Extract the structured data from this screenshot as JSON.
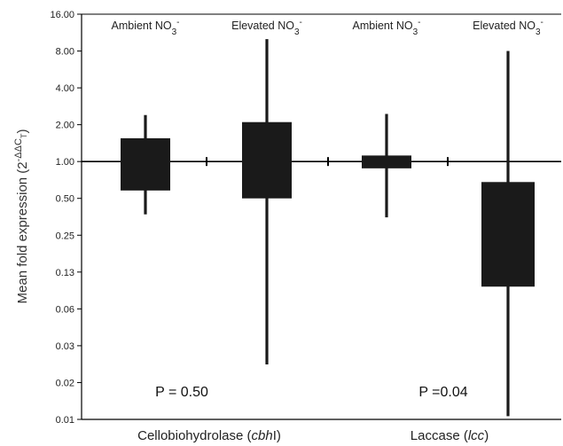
{
  "chart_data": {
    "type": "box",
    "y_scale": "log2",
    "ylim": [
      0.01,
      16
    ],
    "ylabel_text": "Mean fold expression (2",
    "ylabel_superscript": "-ΔΔC",
    "ylabel_superscript_sub": "T",
    "ylabel_close": ")",
    "yticks": [
      {
        "value": 16,
        "label": "16.00"
      },
      {
        "value": 8,
        "label": "8.00"
      },
      {
        "value": 4,
        "label": "4.00"
      },
      {
        "value": 2,
        "label": "2.00"
      },
      {
        "value": 1,
        "label": "1.00"
      },
      {
        "value": 0.5,
        "label": "0.50"
      },
      {
        "value": 0.25,
        "label": "0.25"
      },
      {
        "value": 0.125,
        "label": "0.13"
      },
      {
        "value": 0.0625,
        "label": "0.06"
      },
      {
        "value": 0.03125,
        "label": "0.03"
      },
      {
        "value": 0.015625,
        "label": "0.02"
      },
      {
        "value": 0.0078125,
        "label": "0.01"
      }
    ],
    "reference_line": 1,
    "categories": [
      {
        "label": "Cellobiohydrolase (",
        "label_italic": "cbh",
        "label_suffix": "I)",
        "p_value": "P = 0.50",
        "groups": [
          {
            "label": "Ambient NO",
            "sub": "3",
            "sup": "-",
            "box": [
              0.58,
              1.55
            ],
            "whisker": [
              0.37,
              2.4
            ]
          },
          {
            "label": "Elevated NO",
            "sub": "3",
            "sup": "-",
            "box": [
              0.5,
              2.1
            ],
            "whisker": [
              0.022,
              10.0
            ]
          }
        ]
      },
      {
        "label": "Laccase (",
        "label_italic": "lcc",
        "label_suffix": ")",
        "p_value": "P =0.04",
        "groups": [
          {
            "label": "Ambient NO",
            "sub": "3",
            "sup": "-",
            "box": [
              0.88,
              1.12
            ],
            "whisker": [
              0.35,
              2.45
            ]
          },
          {
            "label": "Elevated NO",
            "sub": "3",
            "sup": "-",
            "box": [
              0.095,
              0.68
            ],
            "whisker": [
              0.0083,
              8.0
            ]
          }
        ]
      }
    ],
    "colors": {
      "box": "#1a1a1a",
      "axis": "#000000"
    }
  }
}
